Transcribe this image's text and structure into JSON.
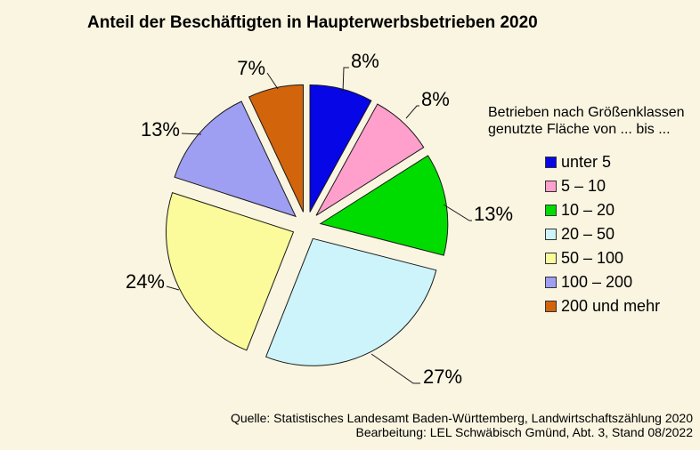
{
  "title": "Anteil der Beschäftigten in Haupterwerbsbetrieben 2020",
  "legend": {
    "heading_line1": "Betrieben nach Größenklassen",
    "heading_line2": "genutzte  Fläche von ... bis ..."
  },
  "source": {
    "line1": "Quelle: Statistisches Landesamt Baden-Württemberg,  Landwirtschaftszählung  2020",
    "line2": "Bearbeitung: LEL Schwäbisch Gmünd, Abt. 3, Stand 08/2022"
  },
  "colors": {
    "background": "#FAF5E1",
    "text": "#000000"
  },
  "chart_data": {
    "type": "pie",
    "title": "Anteil der Beschäftigten in Haupterwerbsbetrieben 2020",
    "legend_title": "Betrieben nach Größenklassen genutzte Fläche von ... bis ...",
    "start_angle_deg": 0,
    "direction": "clockwise",
    "exploded": true,
    "slices": [
      {
        "label": "unter 5",
        "value_pct": 8,
        "data_label": "8%",
        "color": "#0606E6"
      },
      {
        "label": "5 – 10",
        "value_pct": 8,
        "data_label": "8%",
        "color": "#FF9FCC"
      },
      {
        "label": "10 – 20",
        "value_pct": 13,
        "data_label": "13%",
        "color": "#00DC00"
      },
      {
        "label": "20 – 50",
        "value_pct": 27,
        "data_label": "27%",
        "color": "#CCF4FA"
      },
      {
        "label": "50 – 100",
        "value_pct": 24,
        "data_label": "24%",
        "color": "#FBFB9B"
      },
      {
        "label": "100 – 200",
        "value_pct": 13,
        "data_label": "13%",
        "color": "#9E9EF2"
      },
      {
        "label": "200 und mehr",
        "value_pct": 7,
        "data_label": "7%",
        "color": "#D2640C"
      }
    ],
    "legend_position": "right",
    "data_labels_outside": true
  }
}
